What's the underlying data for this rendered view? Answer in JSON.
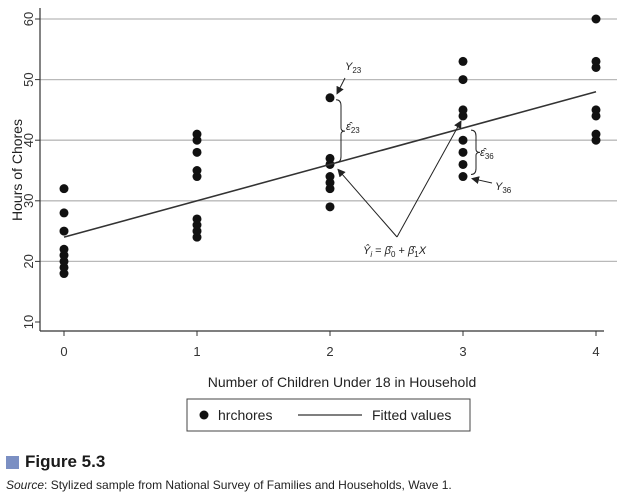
{
  "chart_data": {
    "type": "scatter",
    "xlabel": "Number of Children Under 18 in Household",
    "ylabel": "Hours of Chores",
    "xlim": [
      0,
      4
    ],
    "ylim": [
      10,
      60
    ],
    "xticks": [
      0,
      1,
      2,
      3,
      4
    ],
    "yticks": [
      10,
      20,
      30,
      40,
      50,
      60
    ],
    "grid": "horizontal",
    "legend_position": "bottom",
    "series": [
      {
        "name": "hrchores",
        "kind": "scatter",
        "points": [
          [
            0,
            18
          ],
          [
            0,
            19
          ],
          [
            0,
            20
          ],
          [
            0,
            21
          ],
          [
            0,
            22
          ],
          [
            0,
            25
          ],
          [
            0,
            28
          ],
          [
            0,
            32
          ],
          [
            1,
            24
          ],
          [
            1,
            25
          ],
          [
            1,
            26
          ],
          [
            1,
            27
          ],
          [
            1,
            34
          ],
          [
            1,
            35
          ],
          [
            1,
            38
          ],
          [
            1,
            40
          ],
          [
            1,
            41
          ],
          [
            2,
            29
          ],
          [
            2,
            32
          ],
          [
            2,
            33
          ],
          [
            2,
            34
          ],
          [
            2,
            36
          ],
          [
            2,
            37
          ],
          [
            2,
            47
          ],
          [
            3,
            34
          ],
          [
            3,
            36
          ],
          [
            3,
            38
          ],
          [
            3,
            40
          ],
          [
            3,
            44
          ],
          [
            3,
            45
          ],
          [
            3,
            50
          ],
          [
            3,
            53
          ],
          [
            4,
            40
          ],
          [
            4,
            41
          ],
          [
            4,
            44
          ],
          [
            4,
            45
          ],
          [
            4,
            52
          ],
          [
            4,
            53
          ],
          [
            4,
            60
          ]
        ]
      },
      {
        "name": "Fitted values",
        "kind": "line",
        "points": [
          [
            0,
            24
          ],
          [
            4,
            48
          ]
        ]
      }
    ],
    "annotations": {
      "y23": {
        "base": "Y",
        "sub": "23"
      },
      "e23": {
        "base": "ε̂",
        "sub": "23"
      },
      "e36": {
        "base": "ε̂",
        "sub": "36"
      },
      "y36": {
        "base": "Y",
        "sub": "36"
      },
      "equation": {
        "lhs": "Ŷ",
        "lhs_sub": "i",
        "eq": " = ",
        "b0": "β̂",
        "b0_sub": "0",
        "plus": " + ",
        "b1": "β̂",
        "b1_sub": "1",
        "var": "X"
      }
    }
  },
  "caption": {
    "figure_label": "Figure 5.3",
    "source_lead": "Source",
    "source_text": ": Stylized sample from National Survey of Families and Households, Wave 1."
  }
}
